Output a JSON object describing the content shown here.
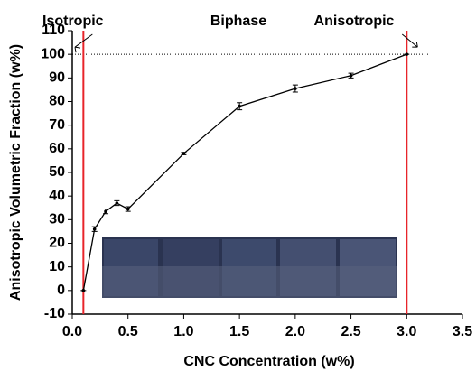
{
  "chart_data": {
    "type": "line",
    "xlabel": "CNC Concentration (w%)",
    "ylabel": "Anisotropic Volumetric Fraction (w%)",
    "x": [
      0.1,
      0.2,
      0.3,
      0.4,
      0.5,
      1.0,
      1.5,
      2.0,
      2.5,
      3.0
    ],
    "values": [
      0,
      26,
      33.5,
      37,
      34.5,
      58,
      78,
      85.5,
      91,
      100
    ],
    "errors": [
      0,
      1,
      1,
      1,
      1,
      0.5,
      1.5,
      1.5,
      1,
      0
    ],
    "color": "#000000",
    "xlim": [
      0,
      3.5
    ],
    "xticks": [
      {
        "value": 0,
        "label": "0.0"
      },
      0.5,
      {
        "value": 1,
        "label": "1.0"
      },
      1.5,
      {
        "value": 2,
        "label": "2.0"
      },
      2.5,
      {
        "value": 3,
        "label": "3.0"
      },
      3.5
    ],
    "ylim": [
      -10,
      110
    ],
    "yticks": [
      -10,
      0,
      10,
      20,
      30,
      40,
      50,
      60,
      70,
      80,
      90,
      100,
      110
    ],
    "vlines": [
      0.1,
      3.0
    ],
    "vline_color": "#e8242a",
    "hline": 100,
    "annotations": [
      "Isotropic",
      "Biphase",
      "Anisotropic"
    ]
  }
}
